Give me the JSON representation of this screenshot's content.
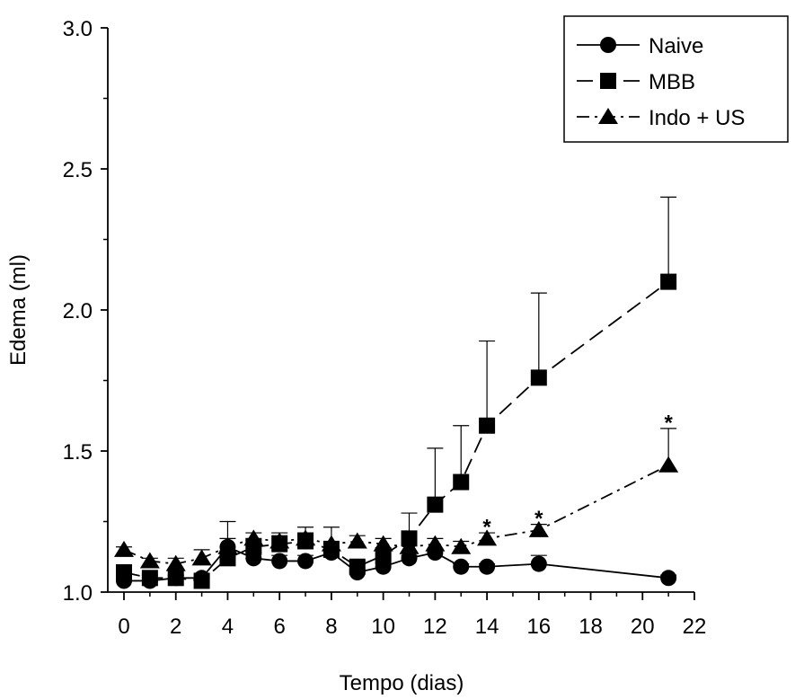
{
  "chart_data": {
    "type": "line",
    "xlabel": "Tempo (dias)",
    "ylabel": "Edema (ml)",
    "xlim": [
      0,
      22
    ],
    "ylim": [
      1.0,
      3.0
    ],
    "x_ticks": [
      "0",
      "2",
      "4",
      "6",
      "8",
      "10",
      "12",
      "14",
      "16",
      "18",
      "20",
      "22"
    ],
    "y_ticks": [
      "1.0",
      "1.5",
      "2.0",
      "2.5",
      "3.0"
    ],
    "grid": false,
    "legend_position": "top-right",
    "series": [
      {
        "name": "Naive",
        "marker": "circle",
        "line_style": "solid",
        "x": [
          0,
          1,
          2,
          3,
          4,
          5,
          6,
          7,
          8,
          9,
          10,
          11,
          12,
          13,
          14,
          16,
          21
        ],
        "values": [
          1.04,
          1.04,
          1.05,
          1.05,
          1.16,
          1.12,
          1.11,
          1.11,
          1.14,
          1.07,
          1.09,
          1.12,
          1.14,
          1.09,
          1.09,
          1.1,
          1.05
        ],
        "error": [
          0.01,
          0.01,
          0.01,
          0.01,
          0.09,
          0.02,
          0.02,
          0.02,
          0.02,
          0.01,
          0.01,
          0.01,
          0.01,
          0.01,
          0.01,
          0.03,
          0.01
        ]
      },
      {
        "name": "MBB",
        "marker": "square",
        "line_style": "dashed",
        "x": [
          0,
          1,
          2,
          3,
          4,
          5,
          6,
          7,
          8,
          9,
          10,
          11,
          12,
          13,
          14,
          16,
          21
        ],
        "values": [
          1.07,
          1.05,
          1.05,
          1.04,
          1.12,
          1.16,
          1.17,
          1.18,
          1.15,
          1.09,
          1.13,
          1.19,
          1.31,
          1.39,
          1.59,
          1.76,
          2.1
        ],
        "error": [
          0.01,
          0.01,
          0.01,
          0.01,
          0.02,
          0.03,
          0.03,
          0.03,
          0.03,
          0.02,
          0.02,
          0.09,
          0.2,
          0.2,
          0.3,
          0.3,
          0.3
        ]
      },
      {
        "name": "Indo + US",
        "marker": "triangle",
        "line_style": "dash-dot",
        "x": [
          0,
          1,
          2,
          3,
          4,
          5,
          6,
          7,
          8,
          9,
          10,
          11,
          12,
          13,
          14,
          16,
          21
        ],
        "values": [
          1.15,
          1.11,
          1.1,
          1.12,
          1.16,
          1.19,
          1.18,
          1.19,
          1.17,
          1.18,
          1.17,
          1.16,
          1.17,
          1.16,
          1.19,
          1.22,
          1.45
        ],
        "error": [
          0.01,
          0.01,
          0.02,
          0.03,
          0.03,
          0.02,
          0.03,
          0.04,
          0.06,
          0.02,
          0.02,
          0.02,
          0.02,
          0.02,
          0.02,
          0.02,
          0.13
        ]
      }
    ],
    "annotations": [
      {
        "text": "*",
        "x": 14,
        "y": 1.25
      },
      {
        "text": "*",
        "x": 16,
        "y": 1.28
      },
      {
        "text": "*",
        "x": 21,
        "y": 1.62
      }
    ]
  }
}
